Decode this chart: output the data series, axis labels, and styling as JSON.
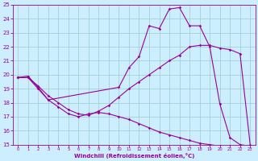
{
  "xlabel": "Windchill (Refroidissement éolien,°C)",
  "bg_color": "#cceeff",
  "line_color": "#990099",
  "xlim": [
    -0.5,
    23.5
  ],
  "ylim": [
    15,
    25
  ],
  "xticks": [
    0,
    1,
    2,
    3,
    4,
    5,
    6,
    7,
    8,
    9,
    10,
    11,
    12,
    13,
    14,
    15,
    16,
    17,
    18,
    19,
    20,
    21,
    22,
    23
  ],
  "yticks": [
    15,
    16,
    17,
    18,
    19,
    20,
    21,
    22,
    23,
    24,
    25
  ],
  "line1_x": [
    0,
    1,
    2,
    3,
    10,
    11,
    12,
    13,
    14,
    15,
    16,
    17,
    18,
    19,
    20,
    21,
    22,
    23
  ],
  "line1_y": [
    19.8,
    19.9,
    19.1,
    18.2,
    19.1,
    20.5,
    21.3,
    23.5,
    23.3,
    24.7,
    24.8,
    23.5,
    23.5,
    22.0,
    17.9,
    15.5,
    15.0,
    14.9
  ],
  "line2_x": [
    0,
    1,
    2,
    3,
    4,
    5,
    6,
    7,
    8,
    9,
    10,
    11,
    12,
    13,
    14,
    15,
    16,
    17,
    18,
    19,
    20,
    21,
    22,
    23
  ],
  "line2_y": [
    19.8,
    19.8,
    19.2,
    18.5,
    18.0,
    17.5,
    17.2,
    17.1,
    17.4,
    17.8,
    18.4,
    19.0,
    19.5,
    20.0,
    20.5,
    21.0,
    21.4,
    22.0,
    22.1,
    22.1,
    21.9,
    21.8,
    21.5,
    15.0
  ],
  "line3_x": [
    0,
    1,
    2,
    3,
    4,
    5,
    6,
    7,
    8,
    9,
    10,
    11,
    12,
    13,
    14,
    15,
    16,
    17,
    18,
    19,
    20,
    21,
    22,
    23
  ],
  "line3_y": [
    19.8,
    19.8,
    19.0,
    18.2,
    17.7,
    17.2,
    17.0,
    17.2,
    17.3,
    17.2,
    17.0,
    16.8,
    16.5,
    16.2,
    15.9,
    15.7,
    15.5,
    15.3,
    15.1,
    15.0,
    14.9,
    14.9,
    14.9,
    14.8
  ]
}
